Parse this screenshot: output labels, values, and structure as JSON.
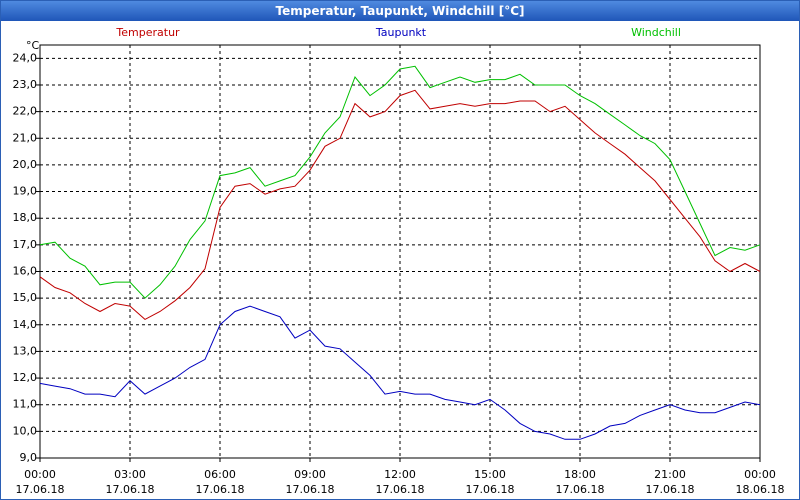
{
  "chart_data": {
    "type": "line",
    "title": "Temperatur, Taupunkt, Windchill [°C]",
    "y_unit": "°C",
    "x": [
      0,
      0.5,
      1,
      1.5,
      2,
      2.5,
      3,
      3.5,
      4,
      4.5,
      5,
      5.5,
      6,
      6.5,
      7,
      7.5,
      8,
      8.5,
      9,
      9.5,
      10,
      10.5,
      11,
      11.5,
      12,
      12.5,
      13,
      13.5,
      14,
      14.5,
      15,
      15.5,
      16,
      16.5,
      17,
      17.5,
      18,
      18.5,
      19,
      19.5,
      20,
      20.5,
      21,
      21.5,
      22,
      22.5,
      23,
      23.5,
      24
    ],
    "series": [
      {
        "name": "Temperatur",
        "color": "#c00000",
        "values": [
          15.8,
          15.4,
          15.2,
          14.8,
          14.5,
          14.8,
          14.7,
          14.2,
          14.5,
          14.9,
          15.4,
          16.1,
          18.4,
          19.2,
          19.3,
          18.9,
          19.1,
          19.2,
          19.8,
          20.7,
          21.0,
          22.3,
          21.8,
          22.0,
          22.6,
          22.8,
          22.1,
          22.2,
          22.3,
          22.2,
          22.3,
          22.3,
          22.4,
          22.4,
          22.0,
          22.2,
          21.7,
          21.2,
          20.8,
          20.4,
          19.9,
          19.4,
          18.7,
          18.0,
          17.3,
          16.4,
          16.0,
          16.3,
          16.0
        ]
      },
      {
        "name": "Taupunkt",
        "color": "#0000c0",
        "values": [
          11.8,
          11.7,
          11.6,
          11.4,
          11.4,
          11.3,
          11.9,
          11.4,
          11.7,
          12.0,
          12.4,
          12.7,
          14.0,
          14.5,
          14.7,
          14.5,
          14.3,
          13.5,
          13.8,
          13.2,
          13.1,
          12.6,
          12.1,
          11.4,
          11.5,
          11.4,
          11.4,
          11.2,
          11.1,
          11.0,
          11.2,
          10.8,
          10.3,
          10.0,
          9.9,
          9.7,
          9.7,
          9.9,
          10.2,
          10.3,
          10.6,
          10.8,
          11.0,
          10.8,
          10.7,
          10.7,
          10.9,
          11.1,
          11.0
        ]
      },
      {
        "name": "Windchill",
        "color": "#00c000",
        "values": [
          17.0,
          17.1,
          16.5,
          16.2,
          15.5,
          15.6,
          15.6,
          15.0,
          15.5,
          16.2,
          17.2,
          17.9,
          19.6,
          19.7,
          19.9,
          19.2,
          19.4,
          19.6,
          20.3,
          21.2,
          21.8,
          23.3,
          22.6,
          23.0,
          23.6,
          23.7,
          22.9,
          23.1,
          23.3,
          23.1,
          23.2,
          23.2,
          23.4,
          23.0,
          23.0,
          23.0,
          22.6,
          22.3,
          21.9,
          21.5,
          21.1,
          20.8,
          20.2,
          19.0,
          17.8,
          16.6,
          16.9,
          16.8,
          17.0
        ]
      }
    ],
    "xlim": [
      0,
      24
    ],
    "xticks": [
      {
        "value": 0,
        "label": "00:00\n17.06.18"
      },
      {
        "value": 3,
        "label": "03:00\n17.06.18"
      },
      {
        "value": 6,
        "label": "06:00\n17.06.18"
      },
      {
        "value": 9,
        "label": "09:00\n17.06.18"
      },
      {
        "value": 12,
        "label": "12:00\n17.06.18"
      },
      {
        "value": 15,
        "label": "15:00\n17.06.18"
      },
      {
        "value": 18,
        "label": "18:00\n17.06.18"
      },
      {
        "value": 21,
        "label": "21:00\n17.06.18"
      },
      {
        "value": 24,
        "label": "00:00\n18.06.18"
      }
    ],
    "ylim": [
      9,
      24.5
    ],
    "yticks": [
      {
        "value": 9,
        "label": "9,0"
      },
      {
        "value": 10,
        "label": "10,0"
      },
      {
        "value": 11,
        "label": "11,0"
      },
      {
        "value": 12,
        "label": "12,0"
      },
      {
        "value": 13,
        "label": "13,0"
      },
      {
        "value": 14,
        "label": "14,0"
      },
      {
        "value": 15,
        "label": "15,0"
      },
      {
        "value": 16,
        "label": "16,0"
      },
      {
        "value": 17,
        "label": "17,0"
      },
      {
        "value": 18,
        "label": "18,0"
      },
      {
        "value": 19,
        "label": "19,0"
      },
      {
        "value": 20,
        "label": "20,0"
      },
      {
        "value": 21,
        "label": "21,0"
      },
      {
        "value": 22,
        "label": "22,0"
      },
      {
        "value": 23,
        "label": "23,0"
      },
      {
        "value": 24,
        "label": "24,0"
      }
    ],
    "grid": true
  }
}
